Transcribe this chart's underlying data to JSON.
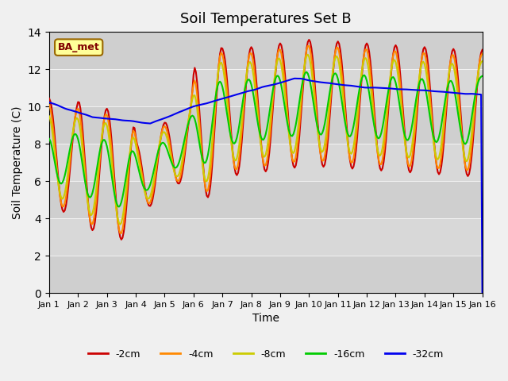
{
  "title": "Soil Temperatures Set B",
  "xlabel": "Time",
  "ylabel": "Soil Temperature (C)",
  "ylim": [
    0,
    14
  ],
  "yticks": [
    0,
    2,
    4,
    6,
    8,
    10,
    12,
    14
  ],
  "xtick_labels": [
    "Jan 1",
    "Jan 2",
    "Jan 3",
    "Jan 4",
    "Jan 5",
    "Jan 6",
    "Jan 7",
    "Jan 8",
    "Jan 9",
    "Jan 10",
    "Jan 11",
    "Jan 12",
    "Jan 13",
    "Jan 14",
    "Jan 15",
    "Jan 16"
  ],
  "colors": {
    "-2cm": "#cc0000",
    "-4cm": "#ff8800",
    "-8cm": "#cccc00",
    "-16cm": "#00cc00",
    "-32cm": "#0000ee"
  },
  "legend_label": "BA_met",
  "legend_box_color": "#ffff99",
  "legend_box_border": "#996600",
  "background_color": "#e8e8e8",
  "plot_bg_color": "#d8d8d8",
  "linewidth": 1.5,
  "n_points": 361,
  "time_days": 15
}
